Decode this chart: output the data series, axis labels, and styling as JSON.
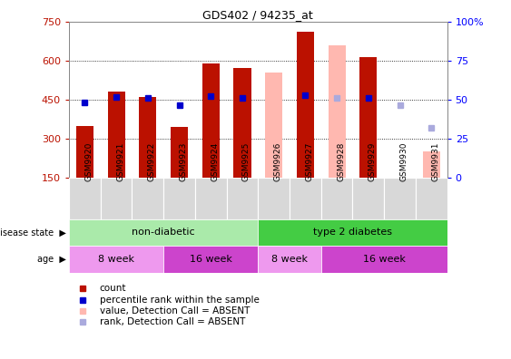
{
  "title": "GDS402 / 94235_at",
  "samples": [
    "GSM9920",
    "GSM9921",
    "GSM9922",
    "GSM9923",
    "GSM9924",
    "GSM9925",
    "GSM9926",
    "GSM9927",
    "GSM9928",
    "GSM9929",
    "GSM9930",
    "GSM9931"
  ],
  "count_values": [
    350,
    480,
    460,
    345,
    590,
    570,
    null,
    710,
    null,
    615,
    null,
    null
  ],
  "count_absent_values": [
    null,
    null,
    null,
    null,
    null,
    null,
    555,
    null,
    660,
    null,
    null,
    250
  ],
  "rank_values": [
    440,
    460,
    455,
    430,
    465,
    458,
    null,
    468,
    null,
    458,
    null,
    null
  ],
  "rank_absent_values": [
    null,
    null,
    null,
    null,
    null,
    null,
    null,
    null,
    455,
    null,
    430,
    340
  ],
  "ylim": [
    150,
    750
  ],
  "y2lim": [
    0,
    100
  ],
  "yticks": [
    150,
    300,
    450,
    600,
    750
  ],
  "y2ticks": [
    0,
    25,
    50,
    75,
    100
  ],
  "gridlines": [
    300,
    450,
    600
  ],
  "bar_color": "#bb1100",
  "bar_absent_color": "#ffb8b0",
  "rank_color": "#0000cc",
  "rank_absent_color": "#aaaadd",
  "disease_state_groups": [
    {
      "label": "non-diabetic",
      "start": 0,
      "end": 6,
      "color": "#aaeaaa"
    },
    {
      "label": "type 2 diabetes",
      "start": 6,
      "end": 12,
      "color": "#44cc44"
    }
  ],
  "age_groups": [
    {
      "label": "8 week",
      "start": 0,
      "end": 3,
      "color": "#ee99ee"
    },
    {
      "label": "16 week",
      "start": 3,
      "end": 6,
      "color": "#cc44cc"
    },
    {
      "label": "8 week",
      "start": 6,
      "end": 8,
      "color": "#ee99ee"
    },
    {
      "label": "16 week",
      "start": 8,
      "end": 12,
      "color": "#cc44cc"
    }
  ],
  "legend_items": [
    {
      "label": "count",
      "color": "#bb1100"
    },
    {
      "label": "percentile rank within the sample",
      "color": "#0000cc"
    },
    {
      "label": "value, Detection Call = ABSENT",
      "color": "#ffb8b0"
    },
    {
      "label": "rank, Detection Call = ABSENT",
      "color": "#aaaadd"
    }
  ]
}
